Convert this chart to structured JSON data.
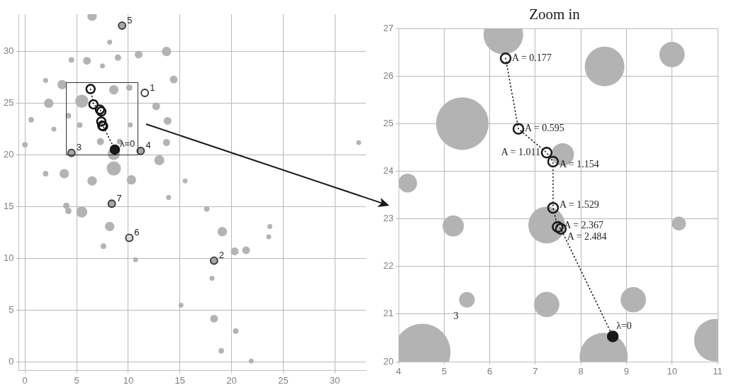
{
  "chart_data": [
    {
      "type": "bubble",
      "xlim": [
        -0.6,
        33
      ],
      "ylim": [
        -0.8,
        33.6
      ],
      "xticks": [
        0,
        5,
        10,
        15,
        20,
        25,
        30
      ],
      "yticks": [
        0,
        5,
        10,
        15,
        20,
        25,
        30
      ],
      "grid": true,
      "legend": false,
      "series": [
        {
          "type": "bubble",
          "color": "#b3b3b3",
          "x": [
            6.5,
            8.2,
            6.0,
            4.5,
            9.0,
            11.0,
            13.7,
            7.5,
            14.4,
            3.6,
            2.0,
            8.6,
            10.1,
            2.3,
            5.5,
            12.7,
            0.6,
            4.2,
            5.3,
            13.8,
            2.8,
            10.2,
            0,
            7.3,
            13.7,
            8.6,
            13.0,
            2.0,
            3.8,
            8.6,
            6.5,
            10.3,
            15.5,
            4.0,
            4.2,
            5.5,
            13.9,
            17.6,
            8.2,
            7.6,
            19.1,
            20.3,
            21.4,
            10.7,
            18.1,
            15.1,
            18.3,
            20.4,
            19.0,
            23.7,
            23.6,
            32.3,
            21.9,
            9.15
          ],
          "values": [
            33.4,
            30.9,
            29.1,
            29.2,
            29.4,
            29.7,
            30.0,
            28.6,
            27.3,
            26.8,
            27.2,
            26.3,
            26.5,
            25.0,
            25.2,
            24.7,
            23.4,
            23.8,
            22.9,
            23.3,
            22.5,
            22.9,
            21.0,
            21.3,
            21.2,
            20.1,
            19.5,
            18.2,
            18.2,
            18.7,
            17.5,
            17.6,
            17.5,
            15.1,
            14.6,
            14.5,
            15.9,
            14.8,
            13.1,
            11.2,
            12.6,
            10.7,
            10.8,
            9.9,
            8.1,
            5.5,
            4.2,
            3.0,
            1.1,
            13.1,
            12.1,
            21.2,
            0.1,
            21.3
          ],
          "sizes": [
            0.44,
            0.12,
            0.3,
            0.15,
            0.2,
            0.3,
            0.44,
            0.12,
            0.3,
            0.44,
            0.12,
            0.44,
            0.2,
            0.44,
            0.86,
            0.3,
            0.15,
            0.15,
            0.15,
            0.3,
            0.12,
            0.12,
            0.15,
            0.25,
            0.25,
            0.72,
            0.5,
            0.15,
            0.44,
            1,
            0.44,
            0.44,
            0.12,
            0.2,
            0.2,
            0.6,
            0.12,
            0.15,
            0.44,
            0.15,
            0.44,
            0.3,
            0.3,
            0.12,
            0.12,
            0.12,
            0.3,
            0.15,
            0.15,
            0.12,
            0.12,
            0.12,
            0.12,
            0.15
          ]
        },
        {
          "type": "line",
          "color": "#111111",
          "line_style": "dotted",
          "marker": "circle",
          "x": [
            6.35,
            6.63,
            7.25,
            7.39,
            7.39,
            7.49,
            7.56,
            8.7
          ],
          "values": [
            26.37,
            24.89,
            24.39,
            24.2,
            23.23,
            22.83,
            22.79,
            20.53
          ]
        },
        {
          "type": "scatter",
          "marker": "circle",
          "colors": [
            "#ffffff",
            "#a6a6a6",
            "#a6a6a6",
            "#a6a6a6",
            "#a6a6a6",
            "#d9d9d9",
            "#a6a6a6"
          ],
          "x": [
            11.6,
            18.3,
            4.5,
            11.2,
            9.4,
            10.1,
            8.4
          ],
          "values": [
            26.0,
            9.8,
            20.2,
            20.4,
            32.5,
            12.0,
            15.3
          ]
        },
        {
          "type": "scatter",
          "marker": "circle",
          "color": "#1a1a1a",
          "x": [
            8.7
          ],
          "values": [
            20.53
          ]
        }
      ],
      "annotations": [
        {
          "text": "1",
          "x": 11.6,
          "y": 26.0
        },
        {
          "text": "2",
          "x": 18.3,
          "y": 9.8
        },
        {
          "text": "3",
          "x": 4.5,
          "y": 20.2
        },
        {
          "text": "4",
          "x": 11.2,
          "y": 20.4
        },
        {
          "text": "5",
          "x": 9.4,
          "y": 32.5
        },
        {
          "text": "6",
          "x": 10.1,
          "y": 12.0
        },
        {
          "text": "7",
          "x": 8.4,
          "y": 15.3
        },
        {
          "text": "λ=0",
          "x": 8.7,
          "y": 20.53
        }
      ]
    },
    {
      "type": "bubble",
      "title": "Zoom in",
      "xlim": [
        4,
        11
      ],
      "ylim": [
        20,
        27
      ],
      "xticks": [
        4,
        5,
        6,
        7,
        8,
        9,
        10,
        11
      ],
      "yticks": [
        20,
        21,
        22,
        23,
        24,
        25,
        26,
        27
      ],
      "grid": true,
      "legend": false,
      "series": [
        {
          "type": "bubble",
          "color": "#b3b3b3",
          "x": [
            6.3,
            5.4,
            4.2,
            5.2,
            5.5,
            4.52,
            7.25,
            7.25,
            8.52,
            10.0,
            7.6,
            10.15,
            9.15,
            8.5,
            10.95
          ],
          "values": [
            26.87,
            25.0,
            23.75,
            22.85,
            21.3,
            20.2,
            22.87,
            21.2,
            26.2,
            26.45,
            24.35,
            22.9,
            21.3,
            20.1,
            20.45
          ],
          "sizes": [
            0.49,
            0.86,
            0.11,
            0.14,
            0.076,
            1,
            0.42,
            0.2,
            0.49,
            0.2,
            0.16,
            0.0625,
            0.2,
            0.72,
            0.56
          ]
        },
        {
          "type": "line",
          "color": "#1a1a1a",
          "line_style": "dotted",
          "marker": "circle",
          "x": [
            6.35,
            6.63,
            7.25,
            7.39,
            7.39,
            7.49,
            7.56,
            8.7
          ],
          "values": [
            26.37,
            24.89,
            24.39,
            24.2,
            23.23,
            22.83,
            22.79,
            20.53
          ]
        },
        {
          "type": "scatter",
          "marker": "circle",
          "color": "#1a1a1a",
          "x": [
            8.7
          ],
          "values": [
            20.53
          ]
        }
      ],
      "annotations": [
        {
          "text": "A = 0.177",
          "x": 6.35,
          "y": 26.37
        },
        {
          "text": "A = 0.595",
          "x": 6.63,
          "y": 24.89
        },
        {
          "text": "A = 1.011",
          "x": 7.25,
          "y": 24.39
        },
        {
          "text": "A = 1.154",
          "x": 7.39,
          "y": 24.2
        },
        {
          "text": "A = 1.529",
          "x": 7.39,
          "y": 23.23
        },
        {
          "text": "A = 2.367",
          "x": 7.49,
          "y": 22.83
        },
        {
          "text": "A = 2.484",
          "x": 7.56,
          "y": 22.79
        },
        {
          "text": "λ=0",
          "x": 8.7,
          "y": 20.53
        },
        "3"
      ]
    }
  ]
}
